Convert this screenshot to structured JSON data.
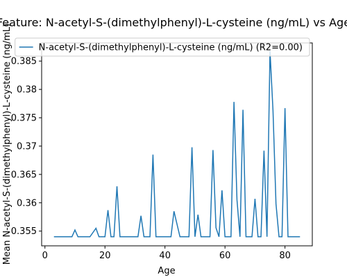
{
  "chart_data": {
    "type": "line",
    "title": "Feature: N-acetyl-S-(dimethylphenyl)-L-cysteine (ng/mL) vs Age",
    "xlabel": "Age",
    "ylabel": "Mean N-acetyl-S-(dimethylphenyl)-L-cysteine (ng/mL)",
    "x": [
      3,
      5,
      7,
      9,
      10,
      11,
      13,
      15,
      17,
      18,
      20,
      21,
      22,
      23,
      24,
      25,
      27,
      29,
      31,
      32,
      33,
      35,
      36,
      37,
      39,
      41,
      42,
      43,
      45,
      47,
      48,
      49,
      50,
      51,
      52,
      54,
      55,
      56,
      57,
      58,
      59,
      60,
      62,
      63,
      64,
      65,
      66,
      67,
      69,
      70,
      71,
      72,
      73,
      74,
      75,
      76,
      77,
      78,
      79,
      80,
      81,
      83,
      85
    ],
    "series": [
      {
        "name": "N-acetyl-S-(dimethylphenyl)-L-cysteine (ng/mL) (R2=0.00)",
        "color": "#1f77b4",
        "values": [
          0.354,
          0.354,
          0.354,
          0.354,
          0.3552,
          0.354,
          0.354,
          0.354,
          0.3555,
          0.354,
          0.354,
          0.3587,
          0.354,
          0.354,
          0.3629,
          0.354,
          0.354,
          0.354,
          0.354,
          0.3577,
          0.354,
          0.354,
          0.3685,
          0.354,
          0.354,
          0.354,
          0.354,
          0.3585,
          0.354,
          0.354,
          0.354,
          0.3698,
          0.354,
          0.3579,
          0.354,
          0.354,
          0.354,
          0.3693,
          0.3556,
          0.354,
          0.3622,
          0.354,
          0.354,
          0.3778,
          0.3605,
          0.354,
          0.3764,
          0.354,
          0.354,
          0.3607,
          0.354,
          0.354,
          0.3692,
          0.354,
          0.3868,
          0.3763,
          0.3598,
          0.354,
          0.354,
          0.3767,
          0.354,
          0.354,
          0.354
        ]
      }
    ],
    "xlim": [
      -1.1,
      89.1
    ],
    "xticks": [
      0,
      20,
      40,
      60,
      80
    ],
    "ylim": [
      0.3524,
      0.3882
    ],
    "yticks": [
      0.355,
      0.36,
      0.365,
      0.37,
      0.375,
      0.38,
      0.385
    ],
    "legend": "upper right"
  }
}
